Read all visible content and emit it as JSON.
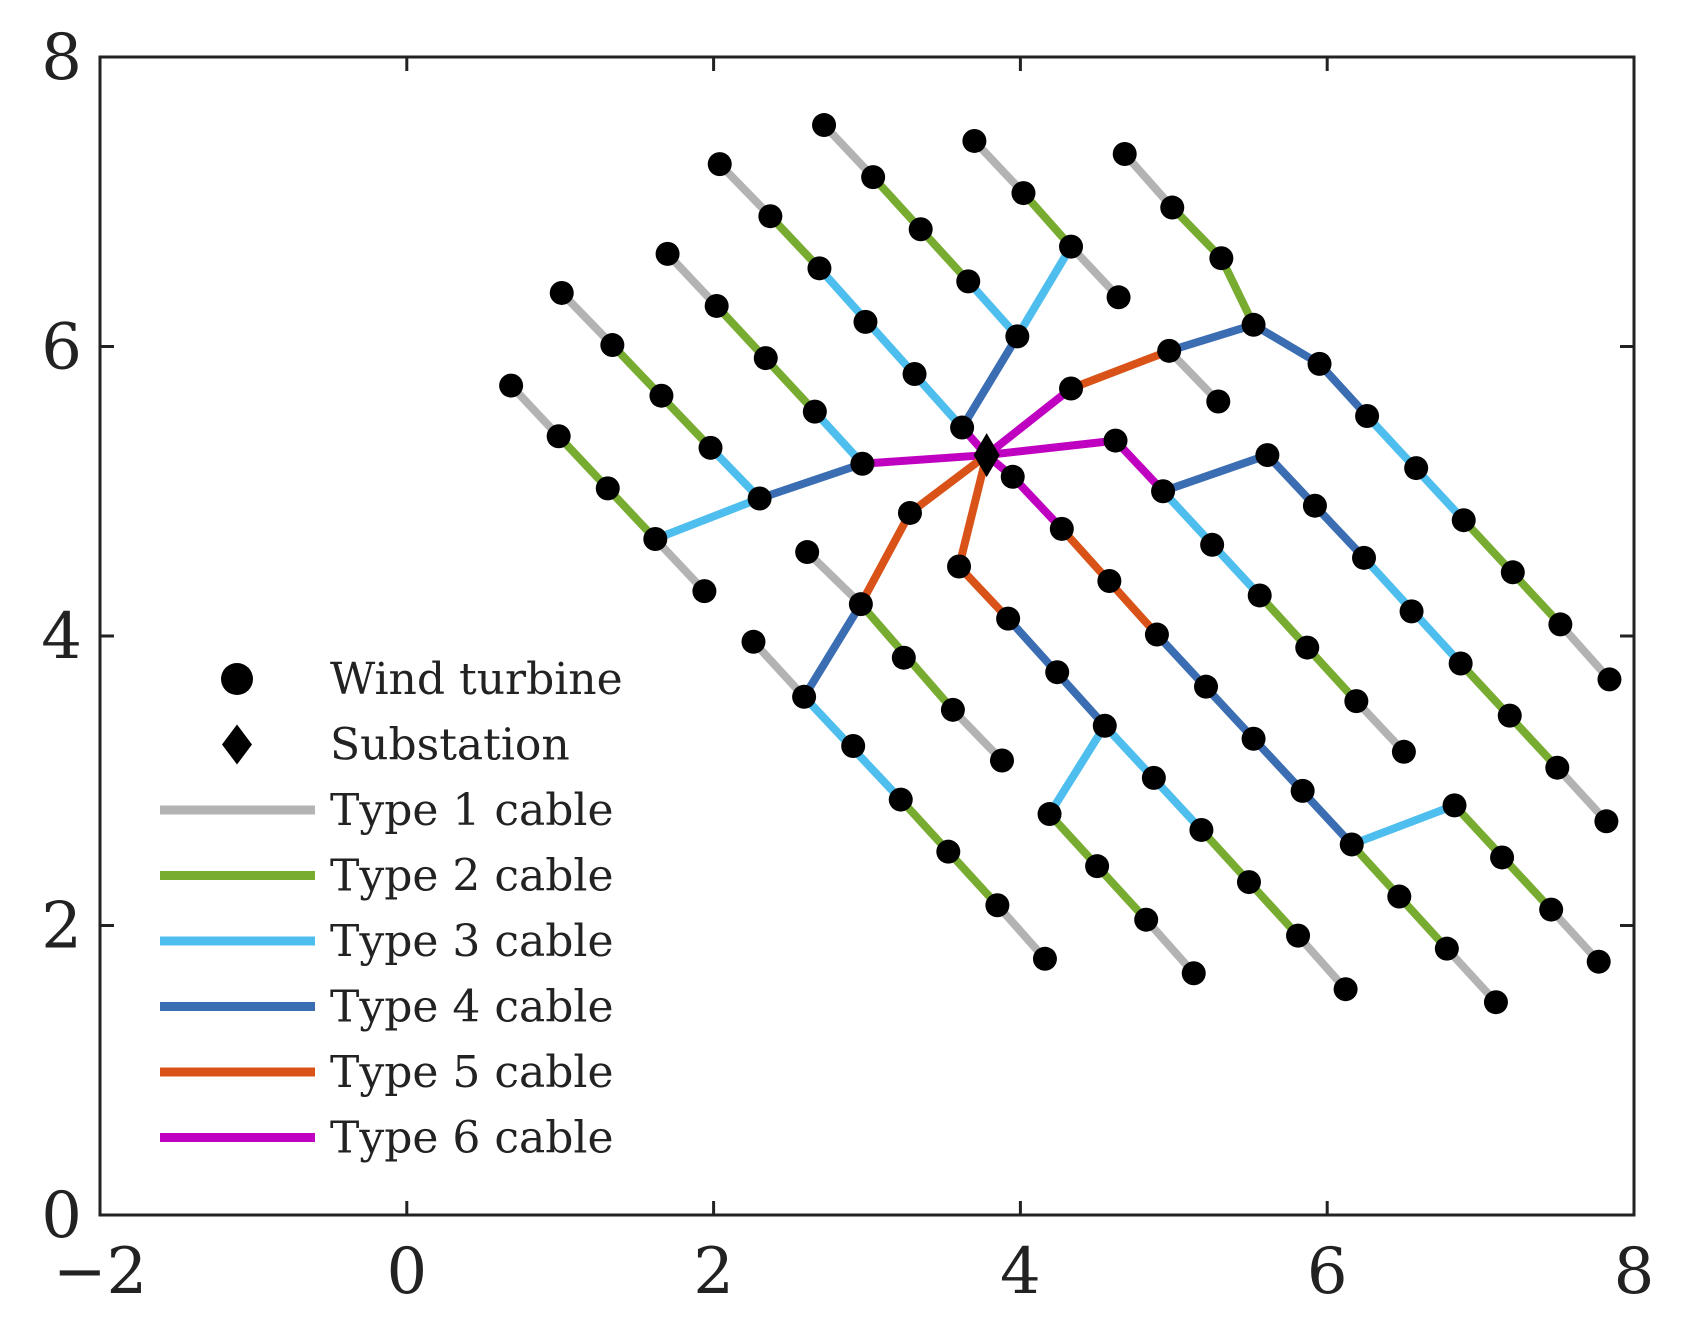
{
  "chart_data": {
    "type": "scatter",
    "title": "",
    "xlabel": "",
    "ylabel": "",
    "xlim": [
      -2,
      8
    ],
    "ylim": [
      0,
      8
    ],
    "xticks": [
      {
        "value": -2,
        "label": "−2"
      },
      {
        "value": 0,
        "label": "0"
      },
      {
        "value": 2,
        "label": "2"
      },
      {
        "value": 4,
        "label": "4"
      },
      {
        "value": 6,
        "label": "6"
      },
      {
        "value": 8,
        "label": "8"
      }
    ],
    "yticks": [
      {
        "value": 0,
        "label": "0"
      },
      {
        "value": 2,
        "label": "2"
      },
      {
        "value": 4,
        "label": "4"
      },
      {
        "value": 6,
        "label": "6"
      },
      {
        "value": 8,
        "label": "8"
      }
    ],
    "grid": false,
    "legend_position": "bottom-left",
    "legend": [
      {
        "label": "Wind turbine",
        "kind": "dot",
        "color": "#000000"
      },
      {
        "label": "Substation",
        "kind": "diamond",
        "color": "#000000"
      },
      {
        "label": "Type 1 cable",
        "kind": "line",
        "color": "#b3b3b3"
      },
      {
        "label": "Type 2 cable",
        "kind": "line",
        "color": "#77ac30"
      },
      {
        "label": "Type 3 cable",
        "kind": "line",
        "color": "#4dbeee"
      },
      {
        "label": "Type 4 cable",
        "kind": "line",
        "color": "#3b6db3"
      },
      {
        "label": "Type 5 cable",
        "kind": "line",
        "color": "#d95319"
      },
      {
        "label": "Type 6 cable",
        "kind": "line",
        "color": "#c000c0"
      }
    ],
    "cable_colors": {
      "1": "#b3b3b3",
      "2": "#77ac30",
      "3": "#4dbeee",
      "4": "#3b6db3",
      "5": "#d95319",
      "6": "#c000c0"
    },
    "substation": {
      "x": 3.78,
      "y": 5.25
    },
    "turbines": [
      [
        0.68,
        5.73
      ],
      [
        0.99,
        5.38
      ],
      [
        1.31,
        5.02
      ],
      [
        1.62,
        4.67
      ],
      [
        1.94,
        4.31
      ],
      [
        1.01,
        6.37
      ],
      [
        1.34,
        6.01
      ],
      [
        1.66,
        5.66
      ],
      [
        1.98,
        5.3
      ],
      [
        2.3,
        4.95
      ],
      [
        1.7,
        6.64
      ],
      [
        2.02,
        6.28
      ],
      [
        2.34,
        5.92
      ],
      [
        2.66,
        5.55
      ],
      [
        2.97,
        5.19
      ],
      [
        2.04,
        7.26
      ],
      [
        2.37,
        6.9
      ],
      [
        2.69,
        6.54
      ],
      [
        2.99,
        6.17
      ],
      [
        3.31,
        5.81
      ],
      [
        3.62,
        5.44
      ],
      [
        2.72,
        7.53
      ],
      [
        3.04,
        7.17
      ],
      [
        3.35,
        6.81
      ],
      [
        3.66,
        6.45
      ],
      [
        3.98,
        6.07
      ],
      [
        3.7,
        7.42
      ],
      [
        4.02,
        7.06
      ],
      [
        4.33,
        6.69
      ],
      [
        4.64,
        6.34
      ],
      [
        4.68,
        7.33
      ],
      [
        4.99,
        6.96
      ],
      [
        5.31,
        6.61
      ],
      [
        5.52,
        6.15
      ],
      [
        4.97,
        5.97
      ],
      [
        5.29,
        5.62
      ],
      [
        4.33,
        5.71
      ],
      [
        5.95,
        5.88
      ],
      [
        6.26,
        5.52
      ],
      [
        6.58,
        5.16
      ],
      [
        6.89,
        4.8
      ],
      [
        7.21,
        4.44
      ],
      [
        7.52,
        4.08
      ],
      [
        7.84,
        3.7
      ],
      [
        5.61,
        5.25
      ],
      [
        5.92,
        4.9
      ],
      [
        6.24,
        4.54
      ],
      [
        6.55,
        4.17
      ],
      [
        6.87,
        3.81
      ],
      [
        7.19,
        3.45
      ],
      [
        7.5,
        3.09
      ],
      [
        7.82,
        2.72
      ],
      [
        4.62,
        5.35
      ],
      [
        4.93,
        5.0
      ],
      [
        5.25,
        4.63
      ],
      [
        5.56,
        4.28
      ],
      [
        5.87,
        3.92
      ],
      [
        6.19,
        3.55
      ],
      [
        6.5,
        3.2
      ],
      [
        3.95,
        5.1
      ],
      [
        4.27,
        4.74
      ],
      [
        4.58,
        4.38
      ],
      [
        4.89,
        4.01
      ],
      [
        5.21,
        3.65
      ],
      [
        5.52,
        3.29
      ],
      [
        5.84,
        2.93
      ],
      [
        6.16,
        2.56
      ],
      [
        6.47,
        2.2
      ],
      [
        6.78,
        1.84
      ],
      [
        7.1,
        1.47
      ],
      [
        6.83,
        2.83
      ],
      [
        7.14,
        2.47
      ],
      [
        7.46,
        2.11
      ],
      [
        7.77,
        1.75
      ],
      [
        3.28,
        4.85
      ],
      [
        2.96,
        4.22
      ],
      [
        2.59,
        3.58
      ],
      [
        2.26,
        3.96
      ],
      [
        2.91,
        3.24
      ],
      [
        3.22,
        2.87
      ],
      [
        3.53,
        2.51
      ],
      [
        3.85,
        2.14
      ],
      [
        4.16,
        1.77
      ],
      [
        2.61,
        4.58
      ],
      [
        3.24,
        3.85
      ],
      [
        3.56,
        3.49
      ],
      [
        3.88,
        3.14
      ],
      [
        3.6,
        4.48
      ],
      [
        3.92,
        4.12
      ],
      [
        4.24,
        3.75
      ],
      [
        4.55,
        3.38
      ],
      [
        4.87,
        3.02
      ],
      [
        5.18,
        2.66
      ],
      [
        5.49,
        2.3
      ],
      [
        5.81,
        1.93
      ],
      [
        6.12,
        1.56
      ],
      [
        4.19,
        2.77
      ],
      [
        4.5,
        2.41
      ],
      [
        4.82,
        2.04
      ],
      [
        5.13,
        1.67
      ]
    ],
    "cables": [
      {
        "type": 1,
        "path": [
          [
            0.68,
            5.73
          ],
          [
            0.99,
            5.38
          ]
        ]
      },
      {
        "type": 2,
        "path": [
          [
            0.99,
            5.38
          ],
          [
            1.62,
            4.67
          ]
        ]
      },
      {
        "type": 1,
        "path": [
          [
            1.62,
            4.67
          ],
          [
            1.94,
            4.31
          ]
        ]
      },
      {
        "type": 3,
        "path": [
          [
            1.62,
            4.67
          ],
          [
            2.3,
            4.95
          ]
        ]
      },
      {
        "type": 1,
        "path": [
          [
            1.01,
            6.37
          ],
          [
            1.34,
            6.01
          ]
        ]
      },
      {
        "type": 2,
        "path": [
          [
            1.34,
            6.01
          ],
          [
            1.98,
            5.3
          ]
        ]
      },
      {
        "type": 3,
        "path": [
          [
            1.98,
            5.3
          ],
          [
            2.3,
            4.95
          ]
        ]
      },
      {
        "type": 4,
        "path": [
          [
            2.3,
            4.95
          ],
          [
            2.97,
            5.19
          ]
        ]
      },
      {
        "type": 1,
        "path": [
          [
            1.7,
            6.64
          ],
          [
            2.02,
            6.28
          ]
        ]
      },
      {
        "type": 2,
        "path": [
          [
            2.02,
            6.28
          ],
          [
            2.66,
            5.55
          ]
        ]
      },
      {
        "type": 3,
        "path": [
          [
            2.66,
            5.55
          ],
          [
            2.97,
            5.19
          ]
        ]
      },
      {
        "type": 6,
        "path": [
          [
            2.97,
            5.19
          ],
          [
            3.78,
            5.25
          ]
        ]
      },
      {
        "type": 1,
        "path": [
          [
            2.04,
            7.26
          ],
          [
            2.37,
            6.9
          ]
        ]
      },
      {
        "type": 2,
        "path": [
          [
            2.37,
            6.9
          ],
          [
            2.69,
            6.54
          ]
        ]
      },
      {
        "type": 3,
        "path": [
          [
            2.69,
            6.54
          ],
          [
            3.62,
            5.44
          ]
        ]
      },
      {
        "type": 6,
        "path": [
          [
            3.62,
            5.44
          ],
          [
            3.78,
            5.25
          ]
        ]
      },
      {
        "type": 1,
        "path": [
          [
            2.72,
            7.53
          ],
          [
            3.04,
            7.17
          ]
        ]
      },
      {
        "type": 2,
        "path": [
          [
            3.04,
            7.17
          ],
          [
            3.66,
            6.45
          ]
        ]
      },
      {
        "type": 3,
        "path": [
          [
            3.66,
            6.45
          ],
          [
            3.98,
            6.07
          ]
        ]
      },
      {
        "type": 1,
        "path": [
          [
            3.7,
            7.42
          ],
          [
            4.02,
            7.06
          ]
        ]
      },
      {
        "type": 2,
        "path": [
          [
            4.02,
            7.06
          ],
          [
            4.33,
            6.69
          ]
        ]
      },
      {
        "type": 1,
        "path": [
          [
            4.33,
            6.69
          ],
          [
            4.64,
            6.34
          ]
        ]
      },
      {
        "type": 3,
        "path": [
          [
            4.33,
            6.69
          ],
          [
            3.98,
            6.07
          ]
        ]
      },
      {
        "type": 4,
        "path": [
          [
            3.98,
            6.07
          ],
          [
            3.62,
            5.44
          ]
        ]
      },
      {
        "type": 1,
        "path": [
          [
            4.68,
            7.33
          ],
          [
            4.99,
            6.96
          ]
        ]
      },
      {
        "type": 2,
        "path": [
          [
            4.99,
            6.96
          ],
          [
            5.31,
            6.61
          ],
          [
            5.52,
            6.15
          ]
        ]
      },
      {
        "type": 4,
        "path": [
          [
            5.52,
            6.15
          ],
          [
            4.97,
            5.97
          ]
        ]
      },
      {
        "type": 1,
        "path": [
          [
            4.97,
            5.97
          ],
          [
            5.29,
            5.62
          ]
        ]
      },
      {
        "type": 5,
        "path": [
          [
            4.97,
            5.97
          ],
          [
            4.33,
            5.71
          ]
        ]
      },
      {
        "type": 6,
        "path": [
          [
            4.33,
            5.71
          ],
          [
            3.78,
            5.25
          ]
        ]
      },
      {
        "type": 4,
        "path": [
          [
            5.52,
            6.15
          ],
          [
            5.95,
            5.88
          ],
          [
            6.26,
            5.52
          ]
        ]
      },
      {
        "type": 3,
        "path": [
          [
            6.26,
            5.52
          ],
          [
            6.89,
            4.8
          ]
        ]
      },
      {
        "type": 2,
        "path": [
          [
            6.89,
            4.8
          ],
          [
            7.52,
            4.08
          ]
        ]
      },
      {
        "type": 1,
        "path": [
          [
            7.52,
            4.08
          ],
          [
            7.84,
            3.7
          ]
        ]
      },
      {
        "type": 1,
        "path": [
          [
            7.5,
            3.09
          ],
          [
            7.82,
            2.72
          ]
        ]
      },
      {
        "type": 2,
        "path": [
          [
            6.87,
            3.81
          ],
          [
            7.5,
            3.09
          ]
        ]
      },
      {
        "type": 3,
        "path": [
          [
            6.24,
            4.54
          ],
          [
            6.87,
            3.81
          ]
        ]
      },
      {
        "type": 4,
        "path": [
          [
            5.61,
            5.25
          ],
          [
            5.92,
            4.9
          ],
          [
            6.24,
            4.54
          ]
        ]
      },
      {
        "type": 4,
        "path": [
          [
            4.93,
            5.0
          ],
          [
            5.61,
            5.25
          ]
        ]
      },
      {
        "type": 1,
        "path": [
          [
            6.19,
            3.55
          ],
          [
            6.5,
            3.2
          ]
        ]
      },
      {
        "type": 2,
        "path": [
          [
            5.56,
            4.28
          ],
          [
            6.19,
            3.55
          ]
        ]
      },
      {
        "type": 3,
        "path": [
          [
            4.93,
            5.0
          ],
          [
            5.56,
            4.28
          ]
        ]
      },
      {
        "type": 6,
        "path": [
          [
            4.62,
            5.35
          ],
          [
            4.93,
            5.0
          ]
        ]
      },
      {
        "type": 6,
        "path": [
          [
            3.78,
            5.25
          ],
          [
            4.62,
            5.35
          ]
        ]
      },
      {
        "type": 6,
        "path": [
          [
            3.78,
            5.25
          ],
          [
            3.95,
            5.1
          ],
          [
            4.27,
            4.74
          ]
        ]
      },
      {
        "type": 5,
        "path": [
          [
            4.27,
            4.74
          ],
          [
            4.89,
            4.01
          ]
        ]
      },
      {
        "type": 4,
        "path": [
          [
            4.89,
            4.01
          ],
          [
            6.16,
            2.56
          ]
        ]
      },
      {
        "type": 2,
        "path": [
          [
            6.16,
            2.56
          ],
          [
            6.78,
            1.84
          ]
        ]
      },
      {
        "type": 1,
        "path": [
          [
            6.78,
            1.84
          ],
          [
            7.1,
            1.47
          ]
        ]
      },
      {
        "type": 3,
        "path": [
          [
            6.16,
            2.56
          ],
          [
            6.83,
            2.83
          ]
        ]
      },
      {
        "type": 2,
        "path": [
          [
            6.83,
            2.83
          ],
          [
            7.46,
            2.11
          ]
        ]
      },
      {
        "type": 1,
        "path": [
          [
            7.46,
            2.11
          ],
          [
            7.77,
            1.75
          ]
        ]
      },
      {
        "type": 5,
        "path": [
          [
            3.78,
            5.25
          ],
          [
            3.28,
            4.85
          ],
          [
            2.96,
            4.22
          ]
        ]
      },
      {
        "type": 4,
        "path": [
          [
            2.96,
            4.22
          ],
          [
            2.59,
            3.58
          ]
        ]
      },
      {
        "type": 1,
        "path": [
          [
            2.26,
            3.96
          ],
          [
            2.59,
            3.58
          ]
        ]
      },
      {
        "type": 3,
        "path": [
          [
            2.59,
            3.58
          ],
          [
            3.22,
            2.87
          ]
        ]
      },
      {
        "type": 2,
        "path": [
          [
            3.22,
            2.87
          ],
          [
            3.85,
            2.14
          ]
        ]
      },
      {
        "type": 1,
        "path": [
          [
            3.85,
            2.14
          ],
          [
            4.16,
            1.77
          ]
        ]
      },
      {
        "type": 1,
        "path": [
          [
            2.61,
            4.58
          ],
          [
            2.96,
            4.22
          ]
        ]
      },
      {
        "type": 2,
        "path": [
          [
            2.96,
            4.22
          ],
          [
            3.56,
            3.49
          ]
        ]
      },
      {
        "type": 1,
        "path": [
          [
            3.56,
            3.49
          ],
          [
            3.88,
            3.14
          ]
        ]
      },
      {
        "type": 5,
        "path": [
          [
            3.78,
            5.25
          ],
          [
            3.6,
            4.48
          ],
          [
            3.92,
            4.12
          ]
        ]
      },
      {
        "type": 4,
        "path": [
          [
            3.92,
            4.12
          ],
          [
            4.55,
            3.38
          ]
        ]
      },
      {
        "type": 3,
        "path": [
          [
            4.55,
            3.38
          ],
          [
            5.18,
            2.66
          ]
        ]
      },
      {
        "type": 2,
        "path": [
          [
            5.18,
            2.66
          ],
          [
            5.81,
            1.93
          ]
        ]
      },
      {
        "type": 1,
        "path": [
          [
            5.81,
            1.93
          ],
          [
            6.12,
            1.56
          ]
        ]
      },
      {
        "type": 3,
        "path": [
          [
            4.55,
            3.38
          ],
          [
            4.19,
            2.77
          ]
        ]
      },
      {
        "type": 2,
        "path": [
          [
            4.19,
            2.77
          ],
          [
            4.82,
            2.04
          ]
        ]
      },
      {
        "type": 1,
        "path": [
          [
            4.82,
            2.04
          ],
          [
            5.13,
            1.67
          ]
        ]
      }
    ]
  }
}
